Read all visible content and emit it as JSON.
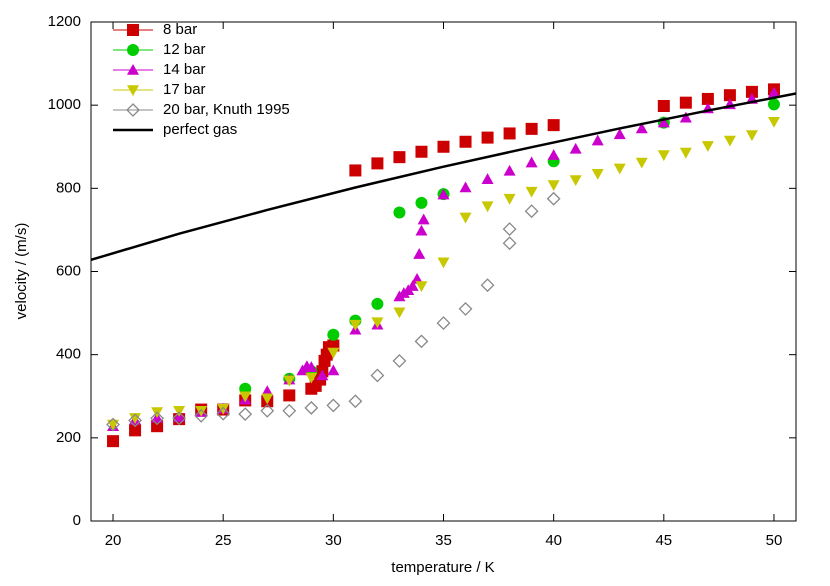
{
  "chart_data": {
    "type": "scatter",
    "xlabel": "temperature / K",
    "ylabel": "velocity / (m/s)",
    "xlim": [
      19,
      51
    ],
    "ylim": [
      0,
      1200
    ],
    "xticks": [
      20,
      25,
      30,
      35,
      40,
      45,
      50
    ],
    "yticks": [
      0,
      200,
      400,
      600,
      800,
      1000,
      1200
    ],
    "grid": false,
    "legend": "upper left",
    "series": [
      {
        "name": "8 bar",
        "color": "#cc0000",
        "marker": "square",
        "x": [
          20,
          21,
          22,
          23,
          24,
          25,
          26,
          27,
          28,
          29,
          29.2,
          29.4,
          29.5,
          29.6,
          29.7,
          29.8,
          30,
          31,
          32,
          33,
          34,
          35,
          36,
          37,
          38,
          39,
          40,
          45,
          46,
          47,
          48,
          49,
          50
        ],
        "values": [
          192,
          218,
          228,
          245,
          268,
          268,
          290,
          288,
          302,
          318,
          325,
          340,
          360,
          385,
          400,
          418,
          422,
          843,
          860,
          875,
          888,
          900,
          912,
          922,
          932,
          943,
          952,
          998,
          1006,
          1015,
          1024,
          1032,
          1038
        ]
      },
      {
        "name": "12 bar",
        "color": "#00cc00",
        "marker": "circle",
        "x": [
          26,
          28,
          29,
          30,
          31,
          32,
          33,
          34,
          35,
          40,
          45,
          50
        ],
        "values": [
          318,
          342,
          360,
          448,
          482,
          522,
          742,
          765,
          786,
          865,
          958,
          1002
        ]
      },
      {
        "name": "14 bar",
        "color": "#cc00cc",
        "marker": "triangle-up",
        "x": [
          20,
          21,
          22,
          23,
          24,
          25,
          26,
          27,
          28,
          28.6,
          28.8,
          29,
          29.5,
          30,
          31,
          32,
          33,
          33.2,
          33.4,
          33.6,
          33.8,
          33.9,
          34,
          34.1,
          35,
          36,
          37,
          38,
          39,
          40,
          41,
          42,
          43,
          44,
          45,
          46,
          47,
          48,
          49,
          50
        ],
        "values": [
          228,
          243,
          248,
          250,
          262,
          270,
          292,
          312,
          340,
          362,
          372,
          370,
          350,
          362,
          460,
          472,
          540,
          548,
          555,
          565,
          582,
          642,
          698,
          725,
          785,
          802,
          822,
          842,
          862,
          880,
          895,
          915,
          930,
          944,
          958,
          970,
          992,
          1002,
          1015,
          1030
        ]
      },
      {
        "name": "17 bar",
        "color": "#c8c800",
        "marker": "triangle-down",
        "x": [
          20,
          21,
          22,
          23,
          24,
          25,
          26,
          27,
          28,
          29,
          30,
          31,
          32,
          33,
          34,
          35,
          36,
          37,
          38,
          39,
          40,
          41,
          42,
          43,
          44,
          45,
          46,
          47,
          48,
          49,
          50
        ],
        "values": [
          232,
          248,
          262,
          265,
          265,
          270,
          300,
          295,
          338,
          345,
          405,
          472,
          478,
          502,
          565,
          622,
          730,
          757,
          775,
          792,
          808,
          820,
          835,
          848,
          862,
          880,
          886,
          902,
          915,
          928,
          960
        ]
      },
      {
        "name": "20 bar, Knuth 1995",
        "color": "#888888",
        "marker": "diamond-open",
        "x": [
          20,
          21,
          22,
          23,
          24,
          25,
          26,
          27,
          28,
          29,
          30,
          31,
          32,
          33,
          34,
          35,
          36,
          37,
          38,
          38,
          39,
          40
        ],
        "values": [
          232,
          242,
          247,
          247,
          253,
          258,
          257,
          265,
          265,
          272,
          278,
          288,
          350,
          385,
          432,
          476,
          510,
          567,
          668,
          702,
          745,
          775
        ]
      },
      {
        "name": "perfect gas",
        "color": "#000000",
        "marker": "line",
        "x": [
          19,
          23,
          27,
          31,
          35,
          39,
          43,
          47,
          51
        ],
        "values": [
          628,
          691,
          748,
          802,
          852,
          899,
          944,
          987,
          1028
        ]
      }
    ]
  }
}
